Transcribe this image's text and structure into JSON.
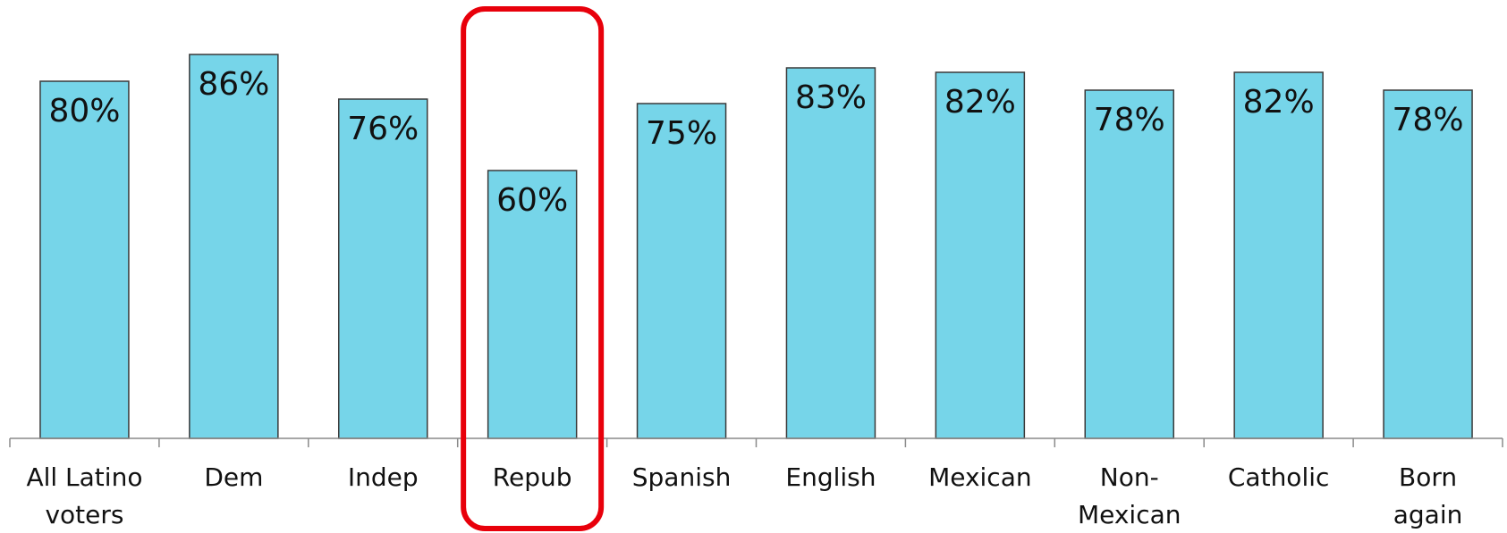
{
  "chart_data": {
    "type": "bar",
    "title": "",
    "xlabel": "",
    "ylabel": "",
    "ylim": [
      0,
      90
    ],
    "grid": false,
    "categories": [
      [
        "All Latino",
        "voters"
      ],
      [
        "Dem"
      ],
      [
        "Indep"
      ],
      [
        "Repub"
      ],
      [
        "Spanish"
      ],
      [
        "English"
      ],
      [
        "Mexican"
      ],
      [
        "Non-",
        "Mexican"
      ],
      [
        "Catholic"
      ],
      [
        "Born",
        "again"
      ]
    ],
    "values": [
      80,
      86,
      76,
      60,
      75,
      83,
      82,
      78,
      82,
      78
    ],
    "data_labels": [
      "80%",
      "86%",
      "76%",
      "60%",
      "75%",
      "83%",
      "82%",
      "78%",
      "82%",
      "78%"
    ],
    "highlight": {
      "category": "Repub",
      "color": "#e8000b"
    },
    "bar_color": "#76d5e9"
  }
}
